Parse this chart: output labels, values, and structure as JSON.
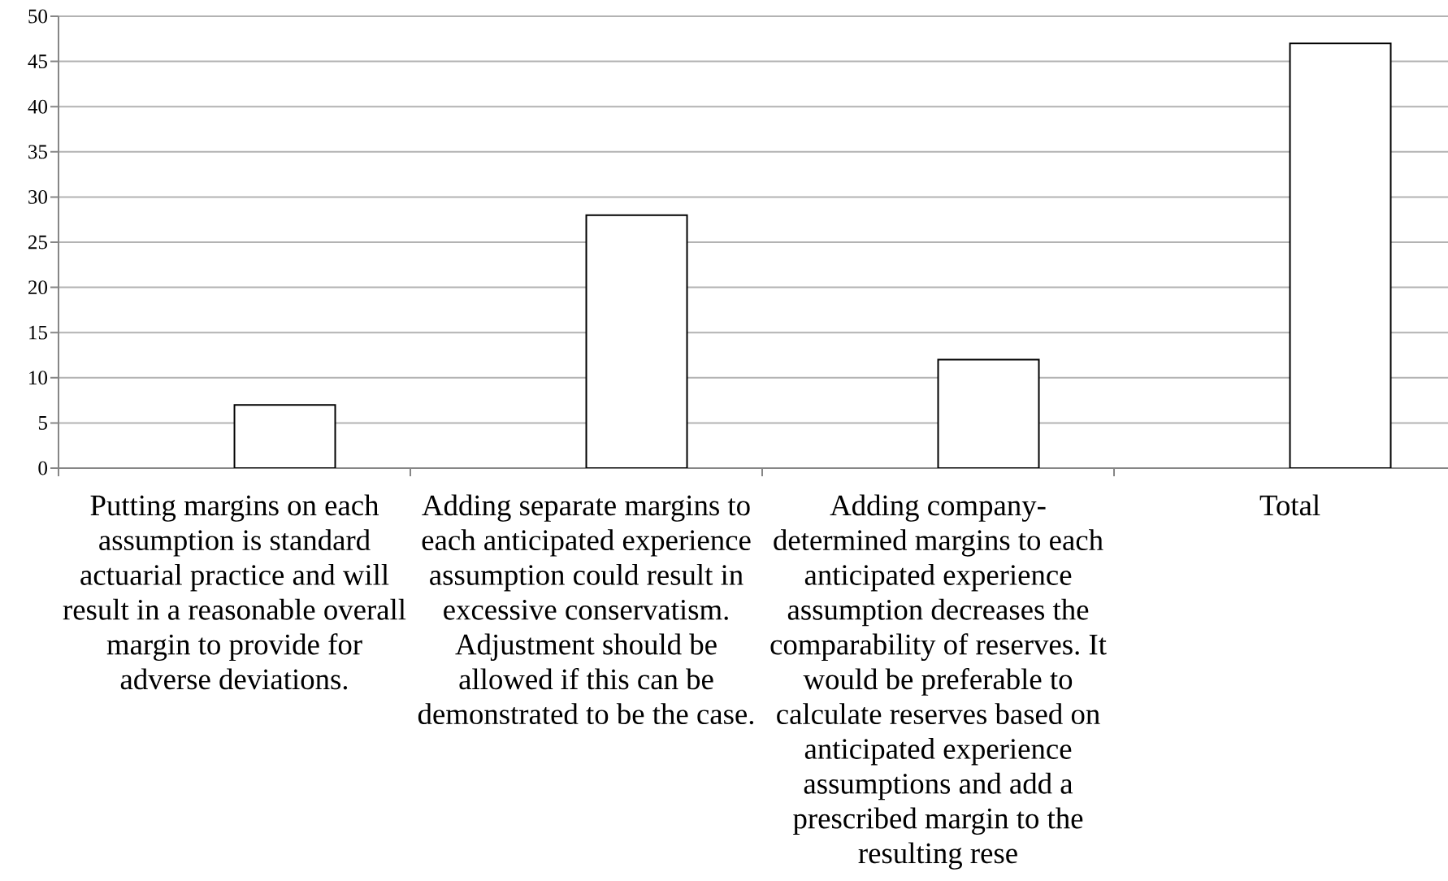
{
  "chart_data": {
    "type": "bar",
    "categories": [
      "Putting margins on each assumption is standard actuarial practice and will result in a reasonable overall margin to provide for adverse deviations.",
      "Adding separate margins to each anticipated experience assumption could result in excessive conservatism. Adjustment should be allowed if this can be demonstrated to be the case.",
      "Adding company-determined margins to each anticipated experience assumption decreases the comparability of reserves. It would be preferable to calculate reserves based on anticipated experience assumptions and add a prescribed margin to the resulting rese",
      "Total"
    ],
    "values": [
      7,
      28,
      12,
      47
    ],
    "color": "#ffffff",
    "ylim": [
      0,
      50
    ],
    "yticks": [
      0,
      5,
      10,
      15,
      20,
      25,
      30,
      35,
      40,
      45,
      50
    ],
    "grid": "y"
  }
}
